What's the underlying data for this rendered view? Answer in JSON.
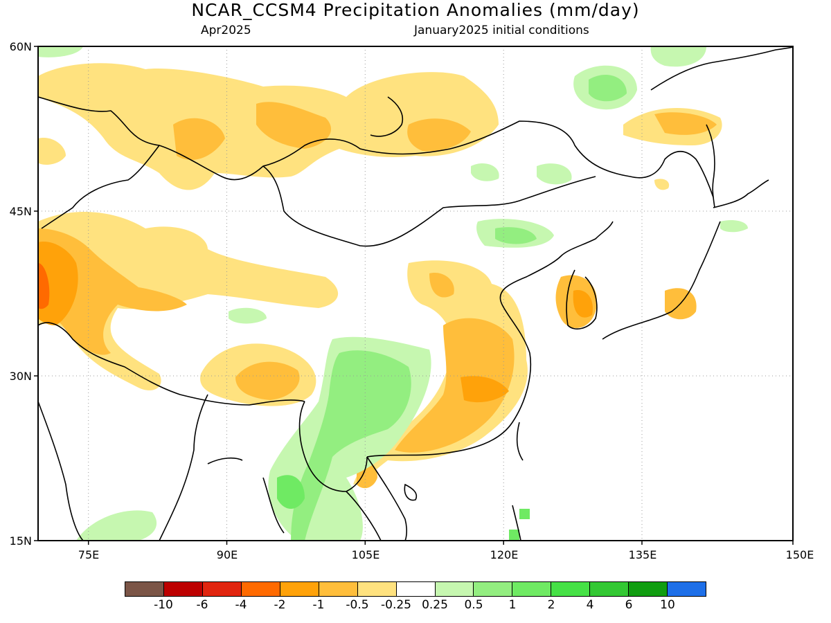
{
  "header": {
    "title": "NCAR_CCSM4 Precipitation Anomalies (mm/day)",
    "left_subtitle": "Apr2025",
    "right_subtitle": "January2025 initial conditions"
  },
  "map": {
    "lat_labels": [
      "60N",
      "45N",
      "30N",
      "15N"
    ],
    "lon_labels": [
      "75E",
      "90E",
      "105E",
      "120E",
      "135E",
      "150E"
    ]
  },
  "legend": {
    "labels": [
      "-10",
      "-6",
      "-4",
      "-2",
      "-1",
      "-0.5",
      "-0.25",
      "0.25",
      "0.5",
      "1",
      "2",
      "4",
      "6",
      "10"
    ],
    "colors": [
      "#7b5547",
      "#bd0000",
      "#e1250f",
      "#ff6a00",
      "#ffa20a",
      "#ffbe3b",
      "#ffe27f",
      "#ffffff",
      "#c6f7b0",
      "#93ee80",
      "#6fea63",
      "#46e146",
      "#33c833",
      "#109d10",
      "#1e6fe8"
    ]
  }
}
